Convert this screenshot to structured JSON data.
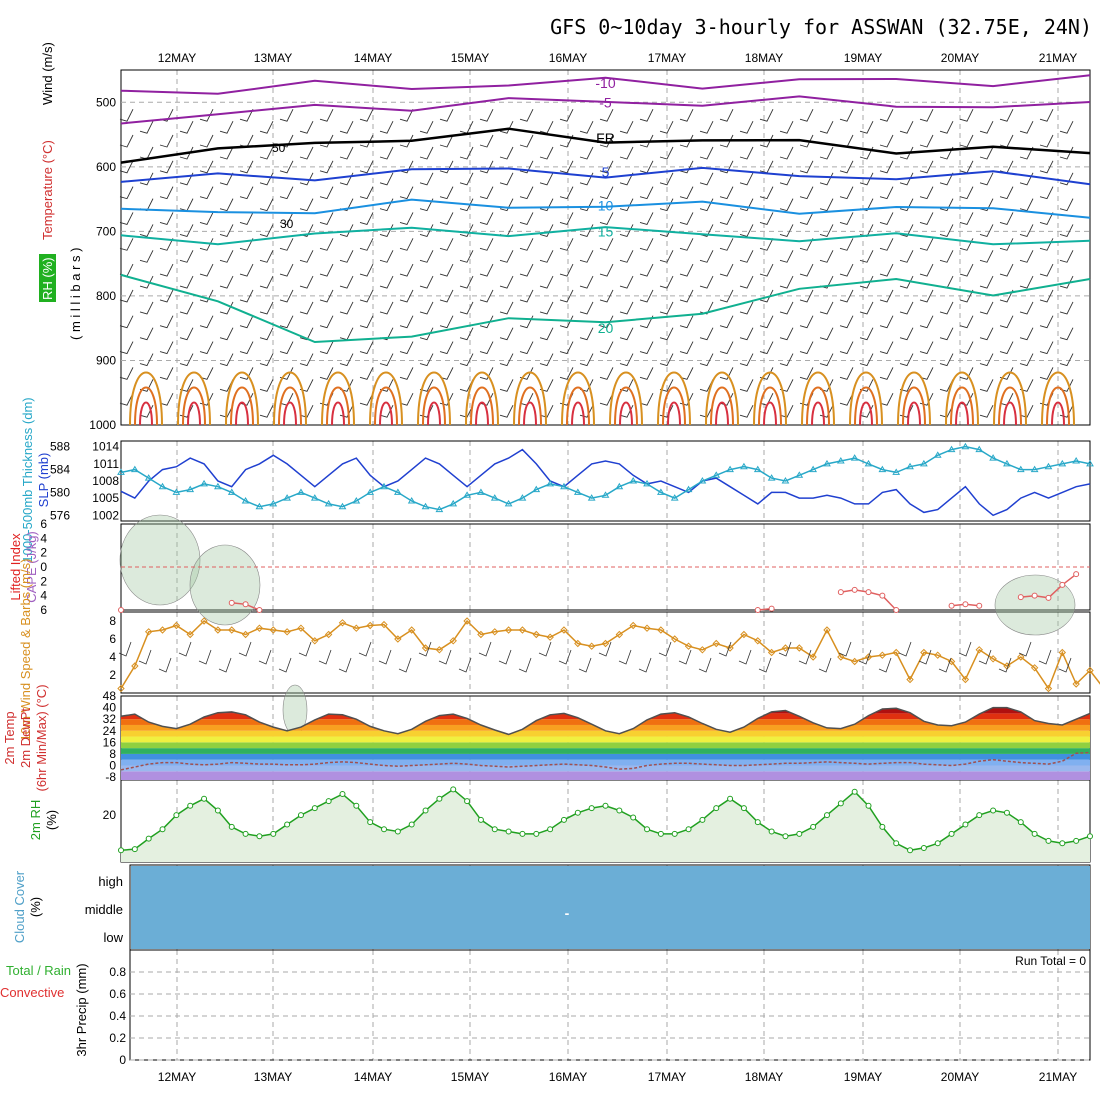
{
  "title": "GFS 0~10day 3-hourly for ASSWAN (32.75E, 24N)",
  "dates": [
    "12MAY",
    "13MAY",
    "14MAY",
    "15MAY",
    "16MAY",
    "17MAY",
    "18MAY",
    "19MAY",
    "20MAY",
    "21MAY"
  ],
  "chart_data": [
    {
      "type": "line",
      "name_panel": "upper-air",
      "ylabels": [
        "Wind (m/s)",
        "Temperature (°C)",
        "RH (%)",
        "( m i l l i b a r s )"
      ],
      "ylabel_colors": [
        "#000000",
        "#d03030",
        "#00aa00",
        "#000000"
      ],
      "y_ticks": [
        500,
        600,
        700,
        800,
        900,
        1000
      ],
      "ylim": [
        450,
        1000
      ],
      "contour_labels": [
        "-10",
        "-5",
        "FR",
        "5",
        "10",
        "15",
        "20"
      ],
      "isotherms": [
        {
          "label": "-10",
          "color": "#9020a0",
          "p": [
            482,
            480,
            476,
            474,
            472,
            470,
            470,
            468,
            468,
            466,
            466
          ]
        },
        {
          "label": "-5",
          "color": "#9020a0",
          "p": [
            525,
            520,
            510,
            504,
            500,
            500,
            498,
            500,
            502,
            505,
            508
          ]
        },
        {
          "label": "FR",
          "color": "#000000",
          "p": [
            585,
            580,
            560,
            555,
            550,
            555,
            560,
            565,
            570,
            575,
            580
          ]
        },
        {
          "label": "5",
          "color": "#1e40d0",
          "p": [
            622,
            618,
            612,
            608,
            606,
            608,
            610,
            612,
            614,
            616,
            620
          ]
        },
        {
          "label": "10",
          "color": "#1a90e0",
          "p": [
            672,
            670,
            665,
            660,
            658,
            660,
            662,
            664,
            666,
            668,
            670
          ]
        },
        {
          "label": "15",
          "color": "#10b0a0",
          "p": [
            715,
            712,
            705,
            700,
            698,
            700,
            705,
            708,
            712,
            715,
            712
          ]
        },
        {
          "label": "20",
          "color": "#10b090",
          "p": [
            770,
            800,
            880,
            860,
            830,
            850,
            820,
            790,
            780,
            790,
            780
          ]
        }
      ],
      "rh_contours": [
        "30",
        "50"
      ]
    },
    {
      "type": "line",
      "name_panel": "thickness-slp",
      "ylabels": [
        "1000-500mb Thickness (dm)",
        "SLP (mb)"
      ],
      "ylabel_colors": [
        "#28a8c8",
        "#2040d0"
      ],
      "thickness_ticks": [
        576,
        580,
        584,
        588
      ],
      "slp_ticks": [
        1002,
        1005,
        1008,
        1011,
        1014
      ],
      "series": [
        {
          "name": "SLP",
          "color": "#2040d0",
          "unit": "mb",
          "values": [
            1006.2,
            1005.0,
            1008.0,
            1010.0,
            1010.5,
            1012.0,
            1011.0,
            1008.0,
            1007.0,
            1010.0,
            1011.0,
            1012.5,
            1011.0,
            1009.0,
            1007.0,
            1009.0,
            1011.0,
            1012.0,
            1009.0,
            1007.0,
            1008.0,
            1010.0,
            1012.0,
            1011.0,
            1009.0,
            1007.0,
            1009.0,
            1011.0,
            1012.0,
            1013.5,
            1011.0,
            1008.0,
            1007.0,
            1009.0,
            1011.0,
            1011.5,
            1011.0,
            1009.0,
            1007.5,
            1008.0,
            1007.0,
            1006.0,
            1008.0,
            1008.5,
            1007.0,
            1005.5,
            1004.0,
            1006.0,
            1006.0,
            1005.0,
            1005.0,
            1005.5,
            1005.0,
            1004.0,
            1004.0,
            1006.0,
            1006.5,
            1004.0,
            1002.5,
            1003.0,
            1005.0,
            1007.0,
            1004.0,
            1002.0,
            1003.0,
            1005.0,
            1006.0,
            1005.0,
            1006.0,
            1007.0,
            1007.5
          ]
        },
        {
          "name": "Thickness",
          "color": "#28a8c8",
          "unit": "dm",
          "values": [
            583.5,
            584.0,
            582.5,
            581.0,
            580.0,
            580.5,
            581.5,
            581.0,
            580.0,
            578.5,
            577.5,
            578.0,
            579.0,
            580.0,
            579.0,
            578.0,
            577.5,
            578.5,
            580.0,
            581.0,
            580.0,
            578.5,
            577.5,
            577.0,
            578.0,
            579.5,
            580.0,
            579.0,
            578.0,
            579.0,
            580.5,
            581.5,
            581.0,
            580.0,
            579.0,
            579.5,
            581.0,
            582.0,
            581.5,
            580.0,
            579.0,
            580.5,
            582.0,
            583.0,
            584.0,
            584.5,
            584.0,
            582.5,
            582.0,
            583.0,
            584.0,
            585.0,
            585.5,
            586.0,
            585.0,
            584.0,
            583.5,
            584.5,
            585.0,
            586.5,
            587.5,
            588.0,
            587.5,
            586.0,
            585.0,
            584.0,
            584.0,
            584.5,
            585.0,
            585.5,
            585.0
          ]
        }
      ]
    },
    {
      "type": "line",
      "name_panel": "lifted-index-cape",
      "ylabels": [
        "Lifted Index",
        "CAPE (J/kg)"
      ],
      "ylabel_colors": [
        "#e02020",
        "#a060c0"
      ],
      "y_ticks": [
        "-6",
        "-4",
        "-2",
        "0",
        "2",
        "4",
        "6"
      ],
      "ylim": [
        6,
        -6
      ],
      "series": [
        {
          "name": "Lifted Index",
          "color": "#e06060",
          "values": [
            6.0,
            null,
            null,
            null,
            null,
            null,
            null,
            null,
            5.0,
            5.2,
            6.0,
            null,
            null,
            null,
            null,
            null,
            null,
            null,
            null,
            null,
            null,
            null,
            null,
            null,
            null,
            null,
            null,
            null,
            null,
            null,
            null,
            null,
            null,
            null,
            null,
            null,
            null,
            null,
            null,
            null,
            null,
            null,
            null,
            null,
            null,
            null,
            6.0,
            5.8,
            null,
            null,
            null,
            null,
            3.5,
            3.2,
            3.5,
            4.0,
            6.0,
            null,
            null,
            null,
            5.4,
            5.2,
            5.4,
            null,
            null,
            4.2,
            4.0,
            4.3,
            2.5,
            1.0
          ]
        }
      ]
    },
    {
      "type": "line",
      "name_panel": "wind-10m",
      "ylabels": [
        "10m Wind Speed & Barbs (m/s)"
      ],
      "ylabel_colors": [
        "#d89020"
      ],
      "y_ticks": [
        2,
        4,
        6,
        8
      ],
      "ylim": [
        0,
        9
      ],
      "series": [
        {
          "name": "10m Wind Speed",
          "color": "#d89020",
          "values": [
            0.5,
            3.0,
            6.8,
            7.0,
            7.5,
            6.5,
            8.0,
            7.0,
            7.0,
            6.5,
            7.2,
            7.0,
            6.8,
            7.2,
            5.8,
            6.5,
            7.8,
            7.2,
            7.5,
            7.6,
            6.0,
            7.0,
            5.0,
            4.8,
            5.8,
            8.0,
            6.5,
            6.8,
            7.0,
            7.0,
            6.5,
            6.2,
            7.0,
            5.5,
            5.2,
            5.5,
            6.5,
            7.5,
            7.2,
            7.0,
            6.0,
            5.2,
            4.8,
            5.5,
            5.0,
            6.5,
            5.8,
            4.5,
            5.0,
            5.0,
            4.0,
            7.0,
            4.0,
            3.5,
            4.0,
            4.2,
            4.5,
            1.5,
            4.5,
            4.2,
            3.5,
            1.5,
            4.8,
            3.8,
            3.0,
            4.0,
            2.8,
            0.5,
            4.5,
            1.0,
            2.5,
            0.5
          ]
        }
      ]
    },
    {
      "type": "area",
      "name_panel": "temp-2m",
      "ylabels": [
        "2m Temp",
        "2m DewPt",
        "(6hr Min/Max) (°C)"
      ],
      "ylabel_colors": [
        "#d03030",
        "#d03030",
        "#d03030"
      ],
      "y_ticks": [
        -8,
        0,
        8,
        16,
        24,
        32,
        40,
        48
      ],
      "ylim": [
        -10,
        48
      ],
      "series": [
        {
          "name": "2m Temp",
          "color": "#505050",
          "values": [
            34.0,
            35.5,
            30.0,
            27.0,
            25.5,
            28.5,
            33.5,
            36.5,
            37.0,
            35.0,
            30.0,
            26.5,
            24.0,
            26.5,
            31.5,
            35.5,
            35.0,
            32.0,
            27.0,
            24.0,
            22.0,
            25.0,
            30.5,
            34.5,
            35.5,
            32.5,
            28.0,
            24.5,
            21.5,
            25.0,
            31.0,
            35.0,
            36.0,
            33.0,
            28.5,
            24.0,
            22.0,
            25.5,
            31.5,
            35.5,
            36.5,
            33.5,
            29.0,
            25.0,
            23.0,
            26.5,
            32.5,
            37.0,
            38.0,
            34.0,
            29.5,
            26.0,
            25.5,
            28.5,
            34.5,
            39.0,
            39.5,
            36.5,
            30.5,
            28.0,
            27.5,
            30.0,
            35.5,
            40.0,
            40.0,
            37.0,
            31.0,
            29.0,
            28.0,
            32.0,
            36.0
          ]
        },
        {
          "name": "2m DewPt",
          "color": "#a05050",
          "values": [
            -3.0,
            -1.0,
            1.0,
            2.0,
            2.0,
            1.0,
            0.5,
            1.0,
            2.0,
            1.5,
            1.0,
            1.0,
            0.5,
            0.5,
            1.0,
            2.0,
            2.5,
            2.0,
            1.0,
            0.0,
            -0.5,
            0.0,
            0.5,
            1.0,
            1.5,
            1.0,
            0.0,
            -0.5,
            -1.0,
            -0.5,
            0.0,
            0.5,
            1.0,
            0.5,
            0.0,
            -1.0,
            -2.5,
            -2.0,
            0.0,
            1.0,
            1.5,
            1.5,
            1.0,
            0.5,
            0.0,
            0.0,
            0.5,
            1.0,
            1.5,
            1.5,
            2.0,
            2.5,
            2.0,
            1.5,
            1.0,
            1.5,
            2.0,
            2.0,
            1.0,
            0.5,
            0.0,
            1.0,
            3.0,
            4.0,
            3.0,
            2.0,
            1.5,
            1.0,
            3.0,
            8.5,
            9.0
          ]
        }
      ]
    },
    {
      "type": "area",
      "name_panel": "rh-2m",
      "ylabels": [
        "2m RH",
        "(%)"
      ],
      "ylabel_colors": [
        "#20a020",
        "#000000"
      ],
      "y_ticks": [
        20
      ],
      "ylim": [
        0,
        35
      ],
      "series": [
        {
          "name": "2m RH",
          "color": "#20a020",
          "values": [
            5,
            5.5,
            10,
            14,
            20,
            24,
            27,
            22,
            15,
            12,
            11,
            12,
            16,
            20,
            23,
            26,
            29,
            24,
            17,
            14,
            13,
            16,
            22,
            27,
            31,
            26,
            18,
            14,
            13,
            12,
            12,
            14,
            18,
            21,
            23,
            24,
            22,
            19,
            14,
            12,
            12,
            14,
            18,
            23,
            27,
            23,
            17,
            13,
            11,
            12,
            15,
            20,
            25,
            30,
            24,
            15,
            8,
            5,
            6,
            8,
            12,
            16,
            20,
            22,
            21,
            17,
            12,
            9,
            8,
            9,
            11
          ]
        }
      ]
    },
    {
      "type": "heatmap",
      "name_panel": "cloud-cover",
      "ylabels": [
        "Cloud Cover",
        "(%)"
      ],
      "ylabel_colors": [
        "#50a0c8",
        "#000000"
      ],
      "levels": [
        "high",
        "middle",
        "low"
      ],
      "fill_color": "#6baed6",
      "marker": "-"
    },
    {
      "type": "bar",
      "name_panel": "precip",
      "ylabels": [
        "3hr Precip (mm)",
        "Total / Rain",
        "Convective"
      ],
      "ylabel_colors": [
        "#000000",
        "#30b030",
        "#e03030"
      ],
      "y_ticks": [
        "0",
        "0.2",
        "0.4",
        "0.6",
        "0.8"
      ],
      "ylim": [
        0,
        1
      ],
      "run_total": "Run Total = 0",
      "values": []
    }
  ]
}
